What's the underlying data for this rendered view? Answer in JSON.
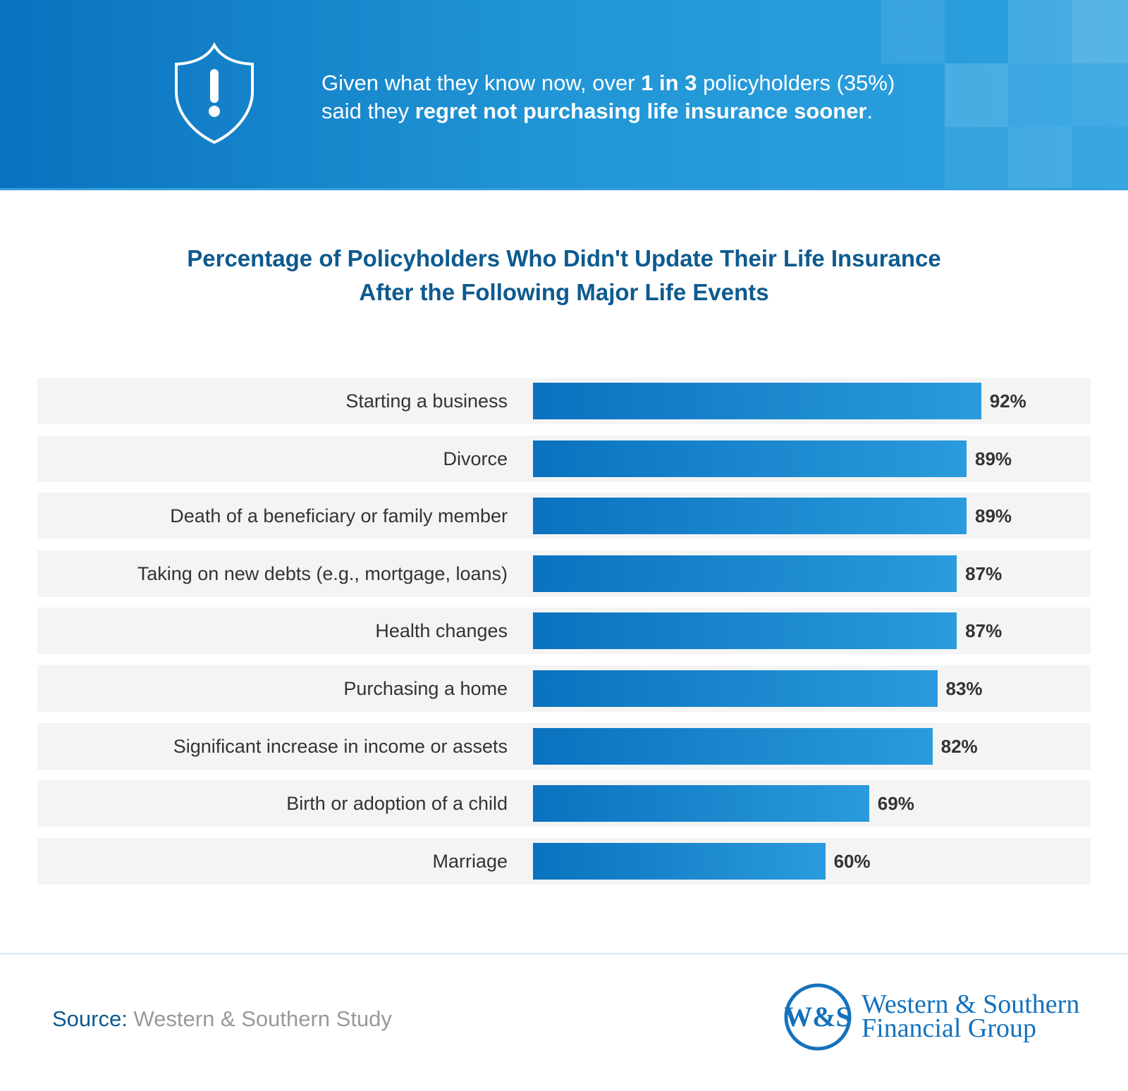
{
  "header": {
    "icon": "shield-exclamation-icon",
    "text_1": "Given what they know now, over ",
    "text_bold_1": "1 in 3",
    "text_2": " policyholders (35%)",
    "text_3": "said they ",
    "text_bold_2": "regret not purchasing life insurance sooner",
    "text_4": "."
  },
  "chart_data": {
    "type": "bar",
    "orientation": "horizontal",
    "title_line1": "Percentage of Policyholders Who Didn't Update Their Life Insurance",
    "title_line2": "After the Following Major Life Events",
    "categories": [
      "Starting a business",
      "Divorce",
      "Death of a beneficiary or family member",
      "Taking on new debts (e.g., mortgage, loans)",
      "Health changes",
      "Purchasing a home",
      "Significant increase in income or assets",
      "Birth or adoption of a child",
      "Marriage"
    ],
    "values": [
      92,
      89,
      89,
      87,
      87,
      83,
      82,
      69,
      60
    ],
    "value_labels": [
      "92%",
      "89%",
      "89%",
      "87%",
      "87%",
      "83%",
      "82%",
      "69%",
      "60%"
    ],
    "xlim": [
      0,
      100
    ],
    "grid": false,
    "bar_color": "#0a72bf"
  },
  "footer": {
    "source_key": "Source:",
    "source_value": " Western & Southern Study",
    "logo_monogram": "W&S",
    "logo_line1": "Western & Southern",
    "logo_line2": "Financial Group"
  }
}
